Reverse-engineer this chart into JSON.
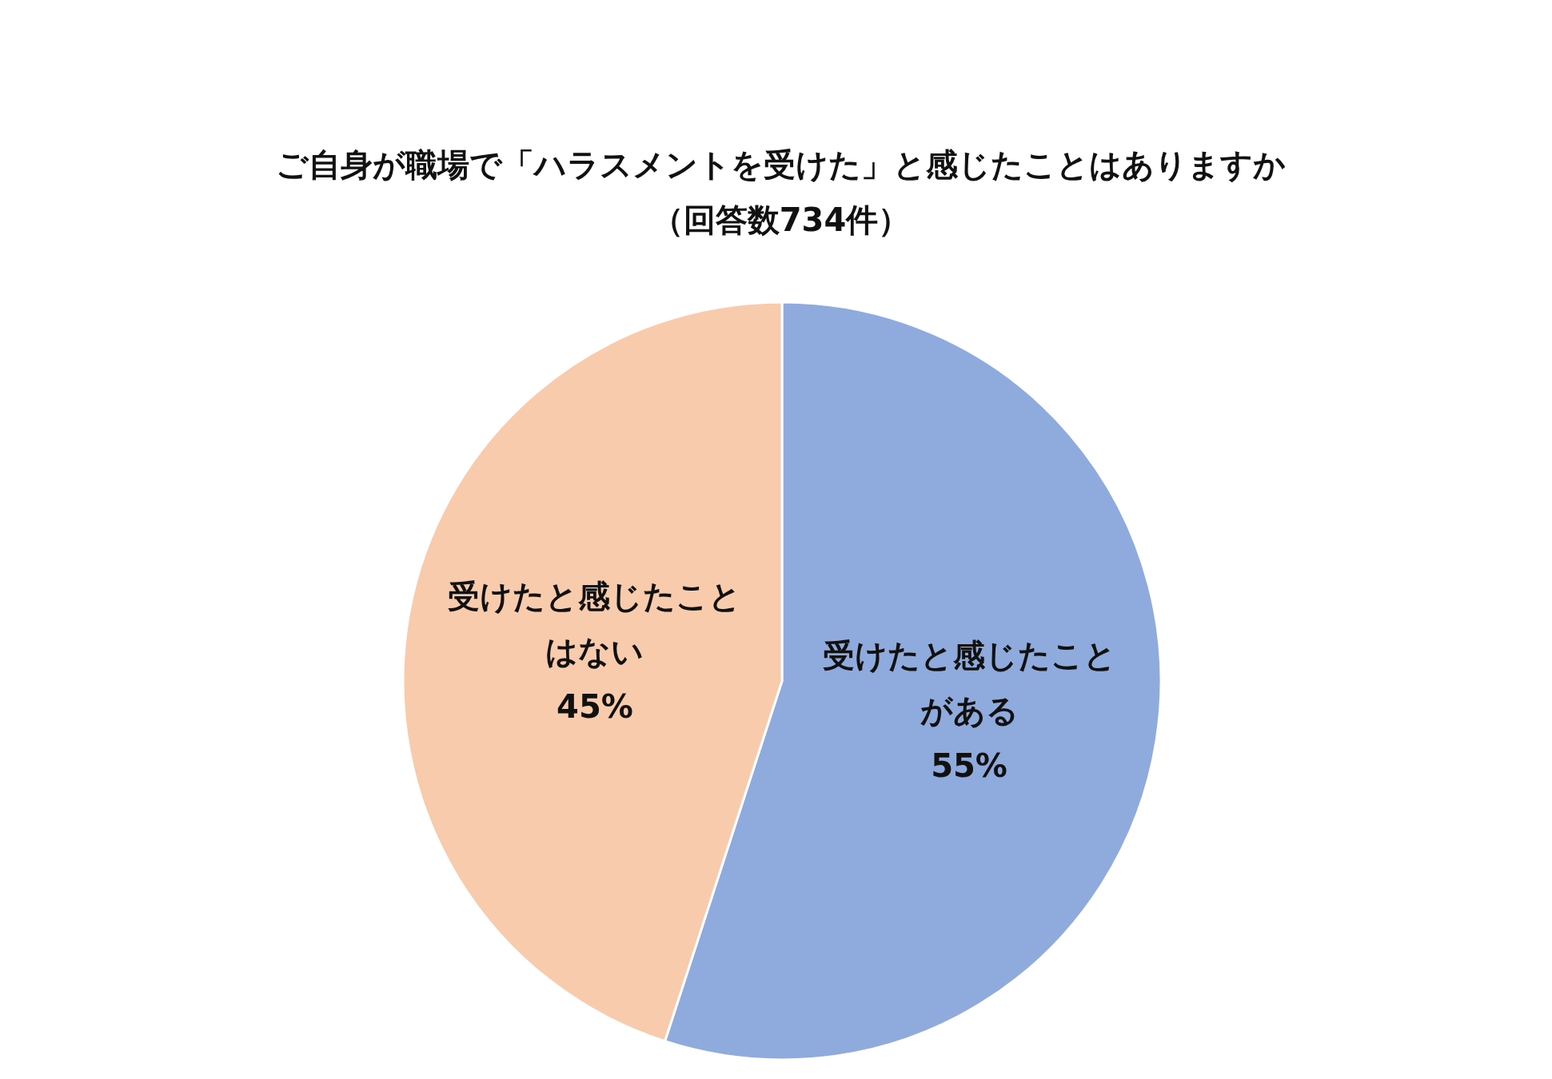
{
  "chart_data": {
    "type": "pie",
    "title": "ご自身が職場で「ハラスメントを受けた」と感じたことはありますか",
    "subtitle": "（回答数734件）",
    "categories": [
      "受けたと感じたことがある",
      "受けたと感じたことはない"
    ],
    "values": [
      55,
      45
    ],
    "value_labels": [
      "55%",
      "45%"
    ],
    "colors": [
      "#8faadc",
      "#f8cbad"
    ],
    "legend": false
  }
}
